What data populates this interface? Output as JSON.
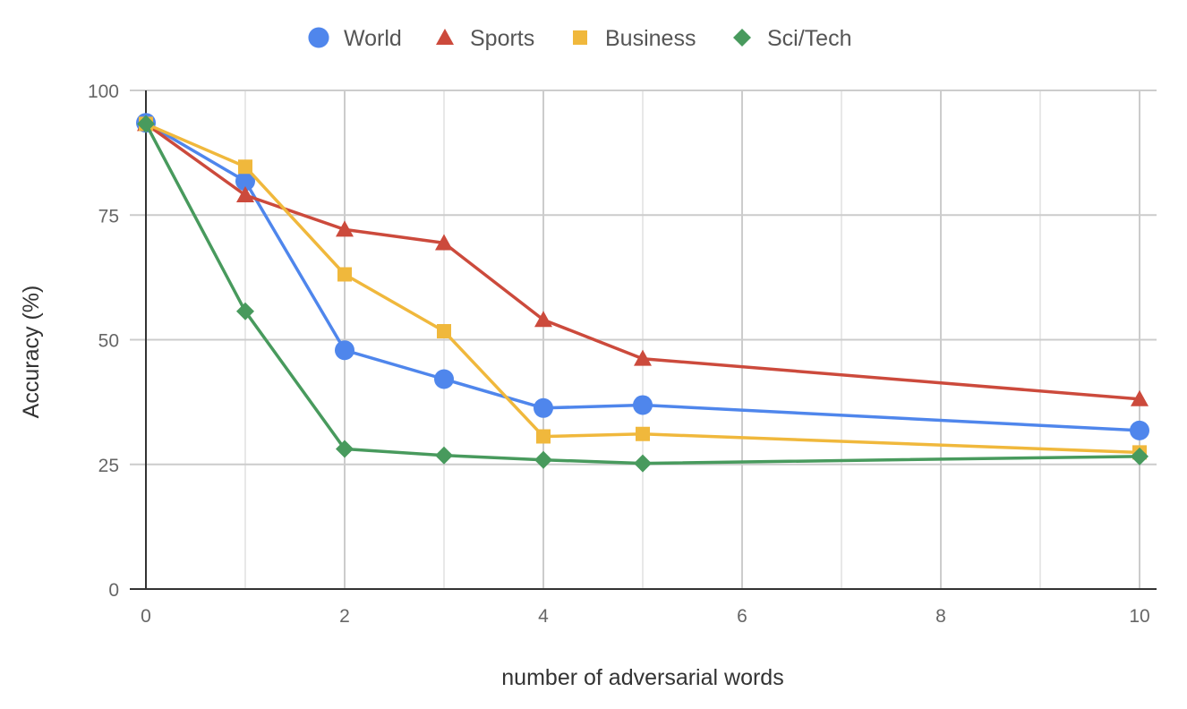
{
  "chart_data": {
    "type": "line",
    "xlabel": "number of adversarial words",
    "ylabel": "Accuracy (%)",
    "xlim": [
      0,
      10
    ],
    "ylim": [
      0,
      100
    ],
    "x_ticks": [
      "0",
      "2",
      "4",
      "6",
      "8",
      "10"
    ],
    "y_ticks": [
      "0",
      "25",
      "50",
      "75",
      "100"
    ],
    "grid": true,
    "legend_position": "top",
    "x": [
      0,
      1,
      2,
      3,
      4,
      5,
      10
    ],
    "series": [
      {
        "name": "World",
        "marker": "circle",
        "color": "#4f86ec",
        "values": [
          93.5,
          81.8,
          47.9,
          42.1,
          36.3,
          36.9,
          31.8
        ]
      },
      {
        "name": "Sports",
        "marker": "triangle",
        "color": "#cc4a3c",
        "values": [
          93.3,
          79.0,
          72.1,
          69.4,
          54.0,
          46.2,
          38.1
        ]
      },
      {
        "name": "Business",
        "marker": "square",
        "color": "#f0b83c",
        "values": [
          93.3,
          84.7,
          63.1,
          51.7,
          30.6,
          31.1,
          27.4
        ]
      },
      {
        "name": "Sci/Tech",
        "marker": "diamond",
        "color": "#489a5d",
        "values": [
          93.3,
          55.7,
          28.1,
          26.8,
          25.9,
          25.2,
          26.6
        ]
      }
    ]
  }
}
